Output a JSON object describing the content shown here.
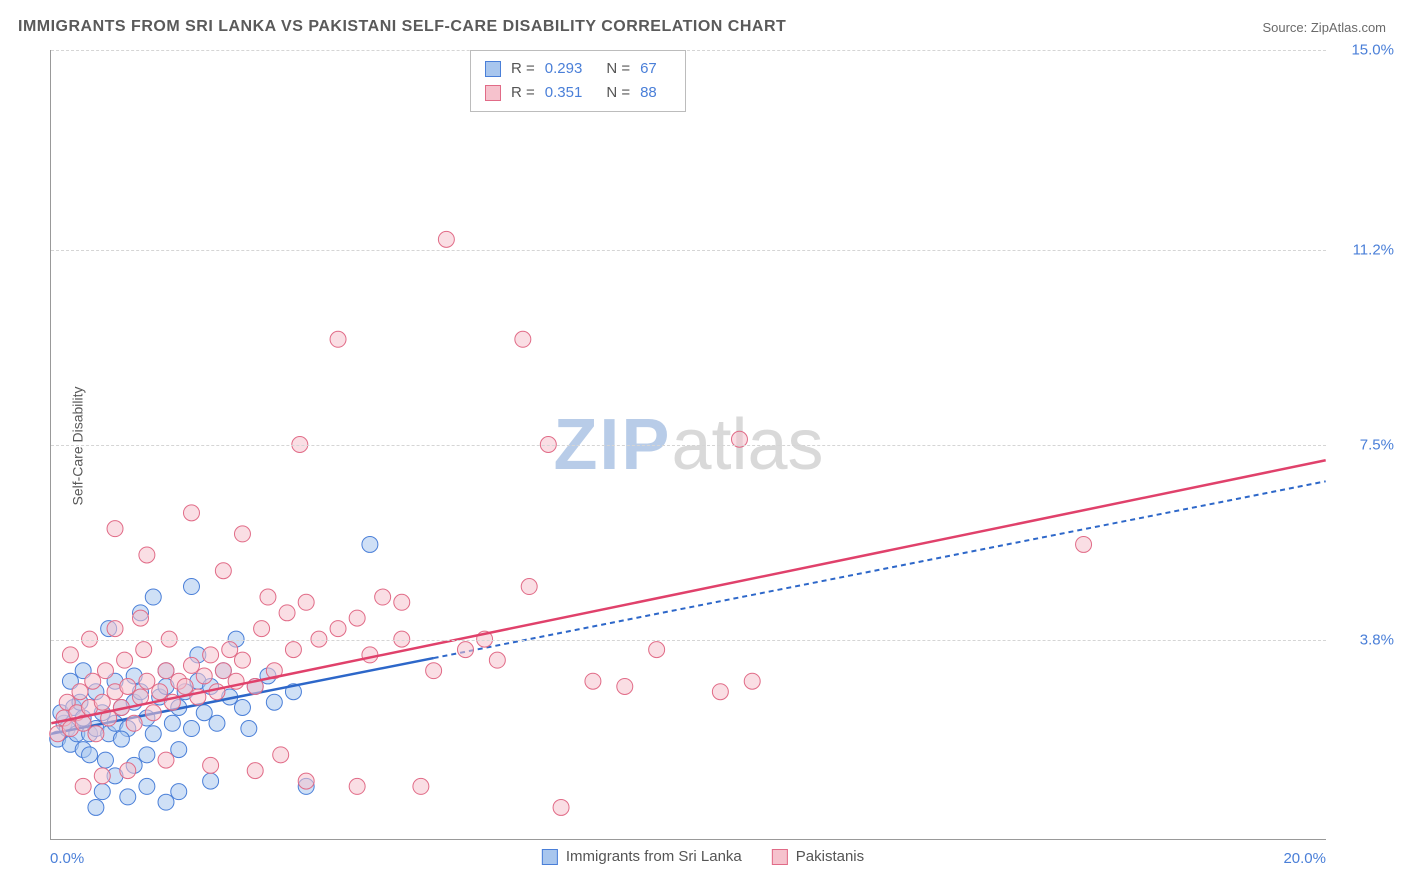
{
  "title": "IMMIGRANTS FROM SRI LANKA VS PAKISTANI SELF-CARE DISABILITY CORRELATION CHART",
  "source": "Source: ZipAtlas.com",
  "ylabel": "Self-Care Disability",
  "watermark": {
    "bold": "ZIP",
    "light": "atlas",
    "color_bold": "#b8cce8",
    "color_light": "#d9d9d9"
  },
  "chart": {
    "type": "scatter",
    "background_color": "#ffffff",
    "grid_color": "#d5d5d5",
    "axis_color": "#999999",
    "xlim": [
      0,
      20
    ],
    "ylim": [
      0,
      15
    ],
    "xtick_left": "0.0%",
    "xtick_right": "20.0%",
    "yticks": [
      {
        "v": 3.8,
        "label": "3.8%"
      },
      {
        "v": 7.5,
        "label": "7.5%"
      },
      {
        "v": 11.2,
        "label": "11.2%"
      },
      {
        "v": 15.0,
        "label": "15.0%"
      }
    ],
    "marker_radius": 8,
    "marker_opacity": 0.55,
    "series": [
      {
        "name": "Immigrants from Sri Lanka",
        "short": "srilanka",
        "r_value": "0.293",
        "n_value": "67",
        "color_fill": "#a8c6ee",
        "color_stroke": "#4a7fd8",
        "line_color": "#2d67c9",
        "line_dash": "5,4",
        "line_solid_until_x": 6.0,
        "trend_y_at_0": 2.0,
        "trend_y_at_20": 6.8,
        "points": [
          [
            0.1,
            1.9
          ],
          [
            0.2,
            2.2
          ],
          [
            0.15,
            2.4
          ],
          [
            0.3,
            1.8
          ],
          [
            0.25,
            2.1
          ],
          [
            0.4,
            2.0
          ],
          [
            0.35,
            2.5
          ],
          [
            0.5,
            1.7
          ],
          [
            0.5,
            2.3
          ],
          [
            0.6,
            2.0
          ],
          [
            0.45,
            2.6
          ],
          [
            0.7,
            2.1
          ],
          [
            0.6,
            1.6
          ],
          [
            0.8,
            2.4
          ],
          [
            0.7,
            2.8
          ],
          [
            0.9,
            2.0
          ],
          [
            1.0,
            2.2
          ],
          [
            0.85,
            1.5
          ],
          [
            1.1,
            2.5
          ],
          [
            1.0,
            3.0
          ],
          [
            1.2,
            2.1
          ],
          [
            1.3,
            2.6
          ],
          [
            1.1,
            1.9
          ],
          [
            1.4,
            2.8
          ],
          [
            1.5,
            2.3
          ],
          [
            1.3,
            3.1
          ],
          [
            1.6,
            2.0
          ],
          [
            1.7,
            2.7
          ],
          [
            1.5,
            1.6
          ],
          [
            1.8,
            2.9
          ],
          [
            1.9,
            2.2
          ],
          [
            2.0,
            2.5
          ],
          [
            1.8,
            3.2
          ],
          [
            2.1,
            2.8
          ],
          [
            2.2,
            2.1
          ],
          [
            2.0,
            1.7
          ],
          [
            2.3,
            3.0
          ],
          [
            2.4,
            2.4
          ],
          [
            2.5,
            2.9
          ],
          [
            2.3,
            3.5
          ],
          [
            2.6,
            2.2
          ],
          [
            2.8,
            2.7
          ],
          [
            2.7,
            3.2
          ],
          [
            3.0,
            2.5
          ],
          [
            2.9,
            3.8
          ],
          [
            3.2,
            2.9
          ],
          [
            3.1,
            2.1
          ],
          [
            3.4,
            3.1
          ],
          [
            3.5,
            2.6
          ],
          [
            3.8,
            2.8
          ],
          [
            0.8,
            0.9
          ],
          [
            1.2,
            0.8
          ],
          [
            1.5,
            1.0
          ],
          [
            1.8,
            0.7
          ],
          [
            1.4,
            4.3
          ],
          [
            0.9,
            4.0
          ],
          [
            1.6,
            4.6
          ],
          [
            2.2,
            4.8
          ],
          [
            5.0,
            5.6
          ],
          [
            1.0,
            1.2
          ],
          [
            1.3,
            1.4
          ],
          [
            0.7,
            0.6
          ],
          [
            2.0,
            0.9
          ],
          [
            2.5,
            1.1
          ],
          [
            4.0,
            1.0
          ],
          [
            0.5,
            3.2
          ],
          [
            0.3,
            3.0
          ]
        ]
      },
      {
        "name": "Pakistanis",
        "short": "pakistanis",
        "r_value": "0.351",
        "n_value": "88",
        "color_fill": "#f6c2cd",
        "color_stroke": "#e16b87",
        "line_color": "#e0416b",
        "line_dash": "none",
        "line_solid_until_x": 20,
        "trend_y_at_0": 2.2,
        "trend_y_at_20": 7.2,
        "points": [
          [
            0.1,
            2.0
          ],
          [
            0.2,
            2.3
          ],
          [
            0.3,
            2.1
          ],
          [
            0.25,
            2.6
          ],
          [
            0.4,
            2.4
          ],
          [
            0.5,
            2.2
          ],
          [
            0.45,
            2.8
          ],
          [
            0.6,
            2.5
          ],
          [
            0.7,
            2.0
          ],
          [
            0.65,
            3.0
          ],
          [
            0.8,
            2.6
          ],
          [
            0.9,
            2.3
          ],
          [
            1.0,
            2.8
          ],
          [
            0.85,
            3.2
          ],
          [
            1.1,
            2.5
          ],
          [
            1.2,
            2.9
          ],
          [
            1.3,
            2.2
          ],
          [
            1.15,
            3.4
          ],
          [
            1.4,
            2.7
          ],
          [
            1.5,
            3.0
          ],
          [
            1.6,
            2.4
          ],
          [
            1.45,
            3.6
          ],
          [
            1.7,
            2.8
          ],
          [
            1.8,
            3.2
          ],
          [
            1.9,
            2.6
          ],
          [
            2.0,
            3.0
          ],
          [
            1.85,
            3.8
          ],
          [
            2.1,
            2.9
          ],
          [
            2.2,
            3.3
          ],
          [
            2.3,
            2.7
          ],
          [
            2.4,
            3.1
          ],
          [
            2.5,
            3.5
          ],
          [
            2.6,
            2.8
          ],
          [
            2.7,
            3.2
          ],
          [
            2.8,
            3.6
          ],
          [
            2.9,
            3.0
          ],
          [
            3.0,
            3.4
          ],
          [
            3.2,
            2.9
          ],
          [
            3.3,
            4.0
          ],
          [
            3.5,
            3.2
          ],
          [
            3.7,
            4.3
          ],
          [
            3.8,
            3.6
          ],
          [
            4.0,
            4.5
          ],
          [
            4.2,
            3.8
          ],
          [
            4.5,
            4.0
          ],
          [
            4.8,
            4.2
          ],
          [
            5.0,
            3.5
          ],
          [
            5.5,
            3.8
          ],
          [
            5.2,
            4.6
          ],
          [
            6.0,
            3.2
          ],
          [
            6.5,
            3.6
          ],
          [
            7.0,
            3.4
          ],
          [
            7.5,
            4.8
          ],
          [
            8.0,
            0.6
          ],
          [
            8.5,
            3.0
          ],
          [
            9.0,
            2.9
          ],
          [
            9.5,
            3.6
          ],
          [
            10.5,
            2.8
          ],
          [
            11.0,
            3.0
          ],
          [
            10.8,
            7.6
          ],
          [
            16.2,
            5.6
          ],
          [
            4.5,
            9.5
          ],
          [
            7.4,
            9.5
          ],
          [
            6.2,
            11.4
          ],
          [
            2.7,
            5.1
          ],
          [
            3.0,
            5.8
          ],
          [
            3.9,
            7.5
          ],
          [
            2.2,
            6.2
          ],
          [
            1.5,
            5.4
          ],
          [
            1.0,
            5.9
          ],
          [
            2.5,
            1.4
          ],
          [
            3.2,
            1.3
          ],
          [
            4.0,
            1.1
          ],
          [
            4.8,
            1.0
          ],
          [
            5.8,
            1.0
          ],
          [
            3.6,
            1.6
          ],
          [
            1.8,
            1.5
          ],
          [
            1.2,
            1.3
          ],
          [
            0.8,
            1.2
          ],
          [
            0.5,
            1.0
          ],
          [
            0.3,
            3.5
          ],
          [
            0.6,
            3.8
          ],
          [
            1.0,
            4.0
          ],
          [
            1.4,
            4.2
          ],
          [
            5.5,
            4.5
          ],
          [
            6.8,
            3.8
          ],
          [
            7.8,
            7.5
          ],
          [
            3.4,
            4.6
          ]
        ]
      }
    ],
    "top_legend": {
      "r_label": "R =",
      "n_label": "N ="
    },
    "colors": {
      "tick_text": "#4a7fd8",
      "label_text": "#5a5a5a"
    }
  }
}
